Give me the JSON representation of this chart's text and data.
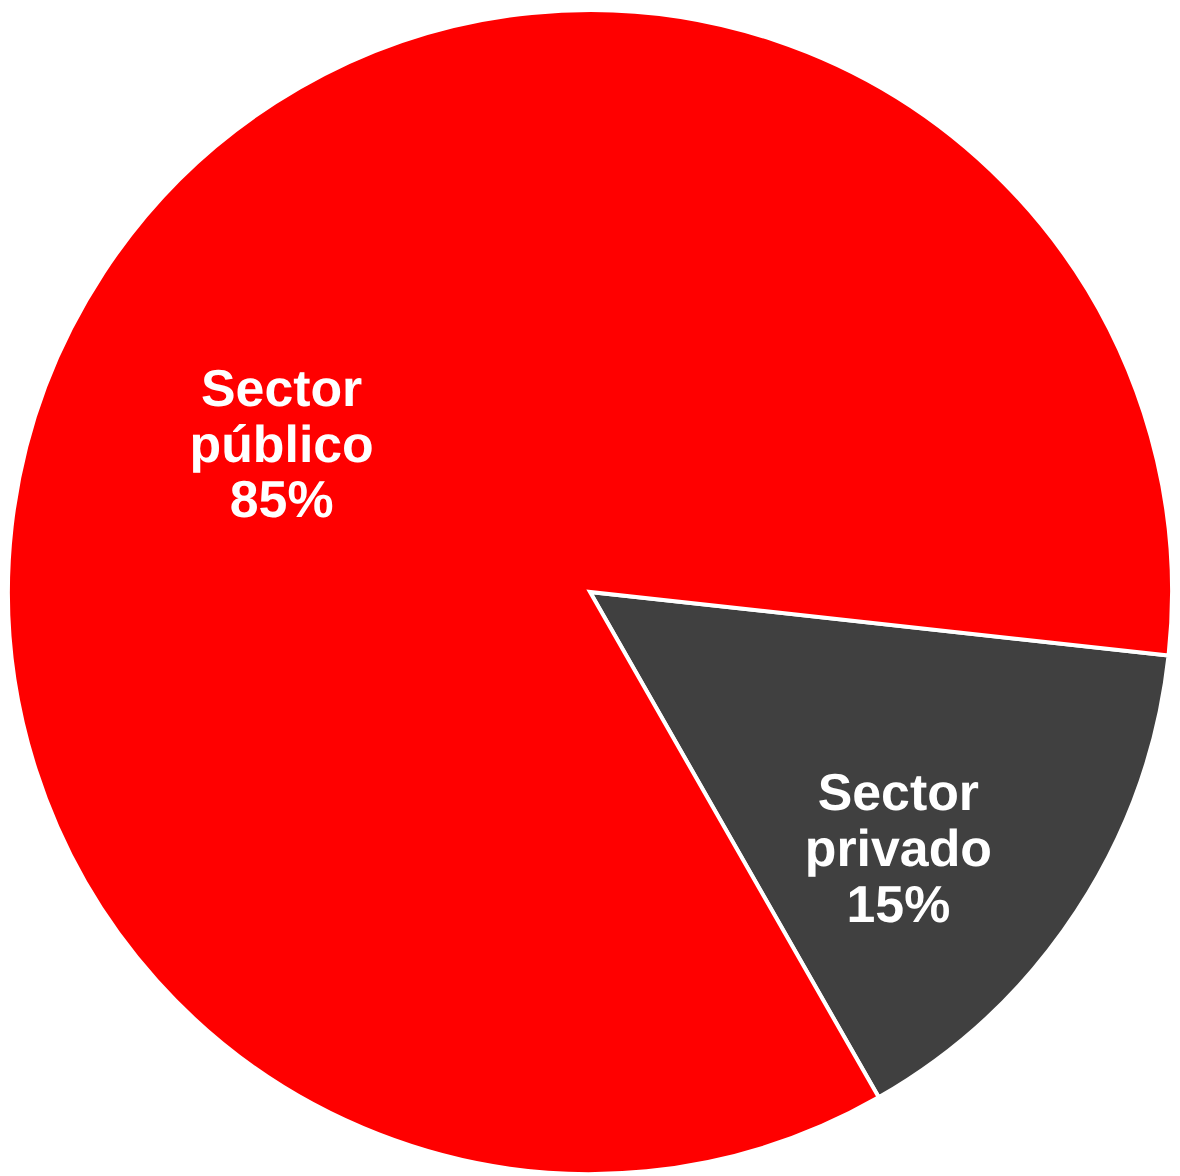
{
  "chart_data": {
    "type": "pie",
    "categories": [
      "Sector privado",
      "Sector público"
    ],
    "values": [
      15,
      85
    ],
    "colors": [
      "#404040",
      "#ff0000"
    ],
    "value_labels": [
      "15%",
      "85%"
    ],
    "legend": false
  }
}
